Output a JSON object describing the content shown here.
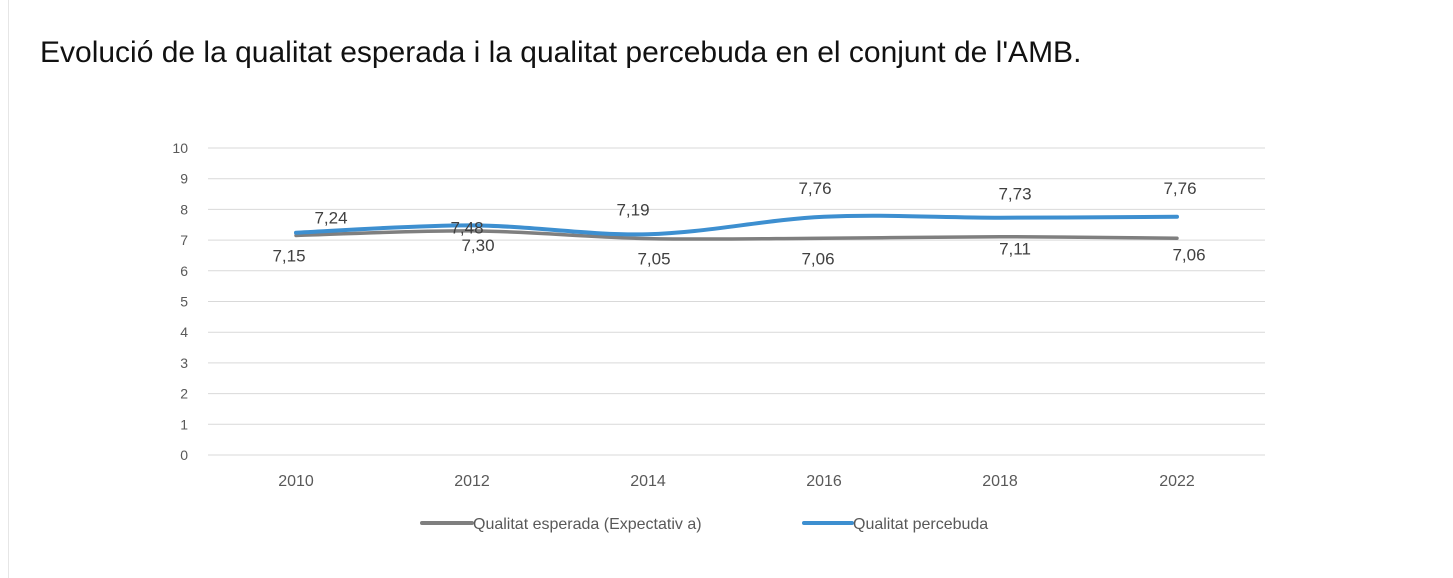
{
  "page": {
    "title": "Evolució de la qualitat esperada i la qualitat percebuda en el conjunt de l'AMB."
  },
  "chart_data": {
    "type": "line",
    "categories": [
      "2010",
      "2012",
      "2014",
      "2016",
      "2018",
      "2022"
    ],
    "series": [
      {
        "name": "Qualitat esperada (Expectativ a)",
        "color": "#7f7f7f",
        "values": [
          7.15,
          7.3,
          7.05,
          7.06,
          7.11,
          7.06
        ],
        "labels": [
          "7,15",
          "7,30",
          "7,05",
          "7,06",
          "7,11",
          "7,06"
        ]
      },
      {
        "name": "Qualitat percebuda",
        "color": "#3d8fd0",
        "values": [
          7.24,
          7.48,
          7.19,
          7.76,
          7.73,
          7.76
        ],
        "labels": [
          "7,24",
          "7,48",
          "7,19",
          "7,76",
          "7,73",
          "7,76"
        ]
      }
    ],
    "ylim": [
      0,
      10
    ],
    "yticks": [
      "0",
      "1",
      "2",
      "3",
      "4",
      "5",
      "6",
      "7",
      "8",
      "9",
      "10"
    ],
    "grid": true,
    "legend": "bottom",
    "smooth": true
  }
}
